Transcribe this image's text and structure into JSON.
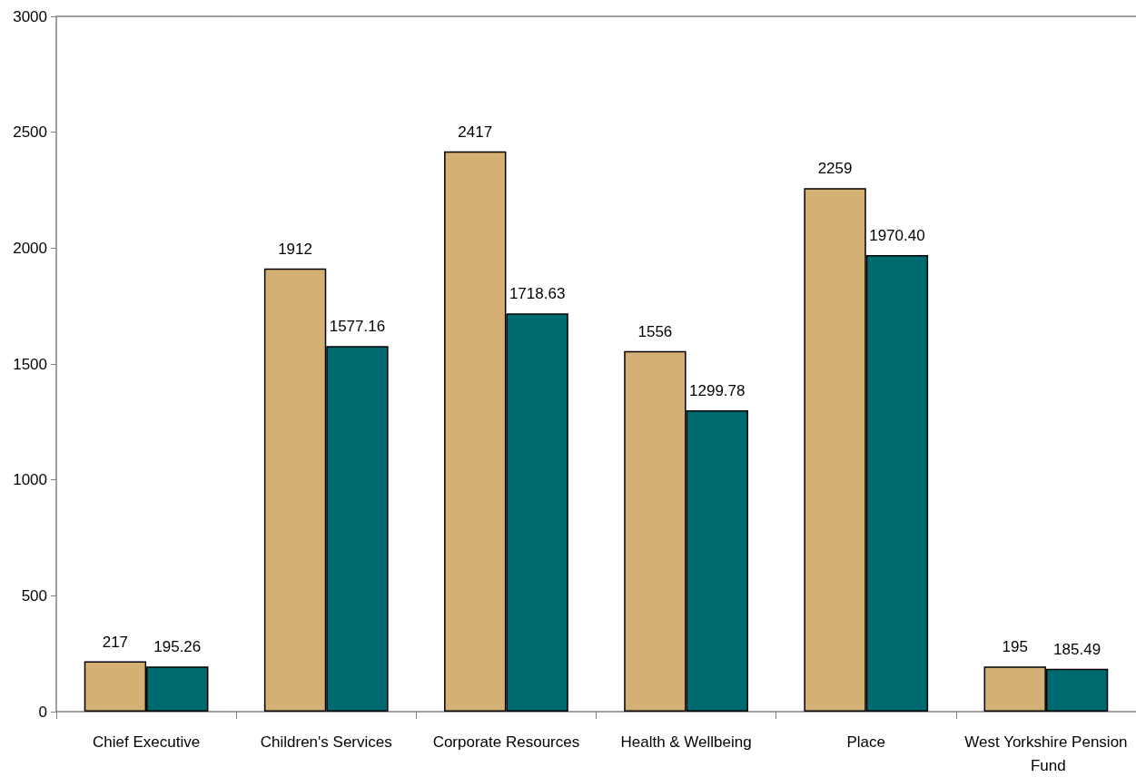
{
  "chart_data": {
    "type": "bar",
    "categories": [
      "Chief Executive",
      "Children's Services",
      "Corporate Resources",
      "Health & Wellbeing",
      "Place",
      "West Yorkshire Pension Fund"
    ],
    "series": [
      {
        "color": "#d4b074",
        "values": [
          217,
          1912,
          2417,
          1556,
          2259,
          195
        ],
        "value_labels": [
          "217",
          "1912",
          "2417",
          "1556",
          "2259",
          "195"
        ]
      },
      {
        "color": "#006a71",
        "values": [
          195.26,
          1577.16,
          1718.63,
          1299.78,
          1970.4,
          185.49
        ],
        "value_labels": [
          "195.26",
          "1577.16",
          "1718.63",
          "1299.78",
          "1970.40",
          "185.49"
        ]
      }
    ],
    "ylim": [
      0,
      3000
    ],
    "yticks": [
      0,
      500,
      1000,
      1500,
      2000,
      2500,
      3000
    ],
    "grid": false
  }
}
